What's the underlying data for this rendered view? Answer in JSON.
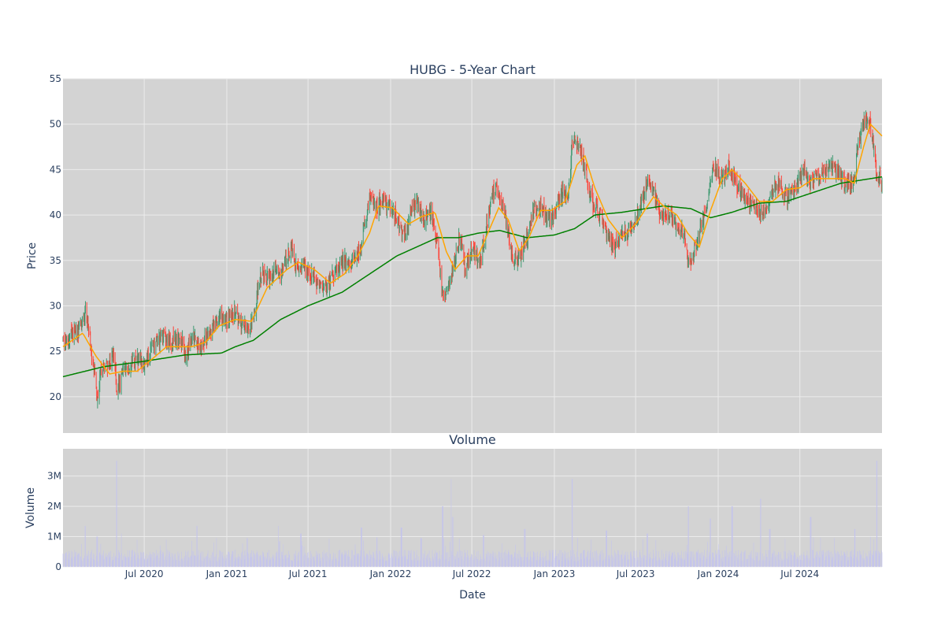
{
  "chart_data": [
    {
      "type": "candlestick",
      "title": "HUBG - 5-Year Chart",
      "ylabel": "Price",
      "ylim": [
        16,
        55
      ],
      "yticks": [
        20,
        25,
        30,
        35,
        40,
        45,
        50,
        55
      ],
      "grid": true,
      "x_range": [
        "2020-01-02",
        "2024-12-31"
      ],
      "colors": {
        "up": "#3d9970",
        "down": "#ff4136",
        "ma_short": "#ffa500",
        "ma_long": "#008000",
        "plot_bg": "#d3d3d3"
      },
      "close_anchors": [
        [
          "2020-01-02",
          25.8
        ],
        [
          "2020-01-20",
          26.8
        ],
        [
          "2020-02-10",
          27.2
        ],
        [
          "2020-02-21",
          29.5
        ],
        [
          "2020-03-03",
          26.0
        ],
        [
          "2020-03-12",
          23.0
        ],
        [
          "2020-03-18",
          19.5
        ],
        [
          "2020-03-24",
          22.0
        ],
        [
          "2020-04-10",
          23.5
        ],
        [
          "2020-04-24",
          24.5
        ],
        [
          "2020-05-01",
          21.0
        ],
        [
          "2020-05-15",
          22.5
        ],
        [
          "2020-06-01",
          23.5
        ],
        [
          "2020-06-15",
          24.0
        ],
        [
          "2020-07-01",
          23.5
        ],
        [
          "2020-07-20",
          25.5
        ],
        [
          "2020-08-10",
          26.5
        ],
        [
          "2020-09-01",
          26.0
        ],
        [
          "2020-09-20",
          26.5
        ],
        [
          "2020-10-01",
          24.5
        ],
        [
          "2020-10-15",
          26.5
        ],
        [
          "2020-11-01",
          25.5
        ],
        [
          "2020-11-15",
          26.5
        ],
        [
          "2020-12-01",
          28.0
        ],
        [
          "2020-12-20",
          28.5
        ],
        [
          "2021-01-05",
          28.5
        ],
        [
          "2021-01-20",
          29.5
        ],
        [
          "2021-02-01",
          28.0
        ],
        [
          "2021-02-15",
          27.5
        ],
        [
          "2021-03-01",
          28.5
        ],
        [
          "2021-03-10",
          31.5
        ],
        [
          "2021-03-18",
          33.5
        ],
        [
          "2021-04-05",
          33.0
        ],
        [
          "2021-04-20",
          34.0
        ],
        [
          "2021-05-01",
          33.0
        ],
        [
          "2021-05-15",
          35.5
        ],
        [
          "2021-05-25",
          36.5
        ],
        [
          "2021-06-05",
          34.0
        ],
        [
          "2021-06-20",
          34.5
        ],
        [
          "2021-07-10",
          33.5
        ],
        [
          "2021-07-25",
          32.5
        ],
        [
          "2021-08-10",
          32.0
        ],
        [
          "2021-09-01",
          34.0
        ],
        [
          "2021-09-20",
          35.0
        ],
        [
          "2021-10-05",
          34.5
        ],
        [
          "2021-10-25",
          36.0
        ],
        [
          "2021-11-05",
          39.0
        ],
        [
          "2021-11-15",
          42.0
        ],
        [
          "2021-12-01",
          41.0
        ],
        [
          "2021-12-15",
          41.5
        ],
        [
          "2022-01-01",
          40.5
        ],
        [
          "2022-01-15",
          39.5
        ],
        [
          "2022-02-01",
          38.0
        ],
        [
          "2022-02-15",
          40.0
        ],
        [
          "2022-03-01",
          41.5
        ],
        [
          "2022-03-15",
          39.5
        ],
        [
          "2022-04-01",
          40.5
        ],
        [
          "2022-04-15",
          37.0
        ],
        [
          "2022-04-27",
          31.0
        ],
        [
          "2022-05-10",
          32.0
        ],
        [
          "2022-05-25",
          35.0
        ],
        [
          "2022-06-05",
          38.0
        ],
        [
          "2022-06-15",
          34.0
        ],
        [
          "2022-07-01",
          36.0
        ],
        [
          "2022-07-20",
          35.0
        ],
        [
          "2022-08-01",
          38.0
        ],
        [
          "2022-08-15",
          42.5
        ],
        [
          "2022-08-25",
          43.0
        ],
        [
          "2022-09-15",
          39.5
        ],
        [
          "2022-09-30",
          35.0
        ],
        [
          "2022-10-15",
          35.5
        ],
        [
          "2022-10-30",
          37.0
        ],
        [
          "2022-11-15",
          40.5
        ],
        [
          "2022-12-01",
          41.0
        ],
        [
          "2022-12-15",
          39.5
        ],
        [
          "2023-01-01",
          40.0
        ],
        [
          "2023-01-15",
          42.5
        ],
        [
          "2023-02-01",
          42.0
        ],
        [
          "2023-02-10",
          48.5
        ],
        [
          "2023-02-25",
          47.5
        ],
        [
          "2023-03-10",
          45.0
        ],
        [
          "2023-03-25",
          41.5
        ],
        [
          "2023-04-15",
          40.0
        ],
        [
          "2023-05-01",
          37.0
        ],
        [
          "2023-05-15",
          36.5
        ],
        [
          "2023-06-01",
          37.5
        ],
        [
          "2023-06-20",
          38.5
        ],
        [
          "2023-07-10",
          40.5
        ],
        [
          "2023-07-25",
          43.5
        ],
        [
          "2023-08-10",
          42.5
        ],
        [
          "2023-08-25",
          40.0
        ],
        [
          "2023-09-15",
          40.0
        ],
        [
          "2023-10-01",
          39.0
        ],
        [
          "2023-10-20",
          37.5
        ],
        [
          "2023-10-27",
          34.5
        ],
        [
          "2023-11-05",
          35.5
        ],
        [
          "2023-11-20",
          38.0
        ],
        [
          "2023-12-05",
          40.5
        ],
        [
          "2023-12-20",
          45.5
        ],
        [
          "2024-01-10",
          44.0
        ],
        [
          "2024-01-25",
          45.5
        ],
        [
          "2024-02-10",
          43.5
        ],
        [
          "2024-03-01",
          42.0
        ],
        [
          "2024-03-20",
          41.0
        ],
        [
          "2024-04-10",
          40.0
        ],
        [
          "2024-04-25",
          42.0
        ],
        [
          "2024-05-10",
          43.5
        ],
        [
          "2024-06-01",
          42.0
        ],
        [
          "2024-06-20",
          43.0
        ],
        [
          "2024-07-10",
          45.0
        ],
        [
          "2024-07-25",
          43.5
        ],
        [
          "2024-08-15",
          44.0
        ],
        [
          "2024-09-05",
          45.5
        ],
        [
          "2024-09-25",
          44.5
        ],
        [
          "2024-10-15",
          43.0
        ],
        [
          "2024-10-30",
          44.0
        ],
        [
          "2024-11-10",
          48.5
        ],
        [
          "2024-11-25",
          51.0
        ],
        [
          "2024-12-10",
          49.0
        ],
        [
          "2024-12-20",
          44.0
        ],
        [
          "2024-12-31",
          44.0
        ]
      ],
      "ma_short_anchors": [
        [
          "2020-01-02",
          25.5
        ],
        [
          "2020-02-15",
          27.0
        ],
        [
          "2020-03-15",
          24.5
        ],
        [
          "2020-04-15",
          22.5
        ],
        [
          "2020-05-15",
          22.8
        ],
        [
          "2020-06-15",
          22.8
        ],
        [
          "2020-07-15",
          24.0
        ],
        [
          "2020-08-20",
          25.5
        ],
        [
          "2020-10-15",
          25.5
        ],
        [
          "2020-11-15",
          26.0
        ],
        [
          "2020-12-15",
          27.8
        ],
        [
          "2021-01-20",
          28.5
        ],
        [
          "2021-02-25",
          28.3
        ],
        [
          "2021-04-01",
          32.0
        ],
        [
          "2021-05-15",
          34.0
        ],
        [
          "2021-06-10",
          34.8
        ],
        [
          "2021-07-15",
          34.0
        ],
        [
          "2021-08-20",
          32.5
        ],
        [
          "2021-09-20",
          33.5
        ],
        [
          "2021-10-20",
          35.5
        ],
        [
          "2021-11-15",
          38.0
        ],
        [
          "2021-12-05",
          41.0
        ],
        [
          "2022-01-05",
          40.8
        ],
        [
          "2022-02-10",
          39.0
        ],
        [
          "2022-03-10",
          39.8
        ],
        [
          "2022-04-10",
          40.3
        ],
        [
          "2022-05-05",
          36.0
        ],
        [
          "2022-05-25",
          34.0
        ],
        [
          "2022-06-20",
          35.5
        ],
        [
          "2022-07-15",
          35.5
        ],
        [
          "2022-08-10",
          38.5
        ],
        [
          "2022-08-30",
          40.8
        ],
        [
          "2022-09-20",
          39.5
        ],
        [
          "2022-10-15",
          36.0
        ],
        [
          "2022-11-05",
          37.5
        ],
        [
          "2022-12-01",
          40.5
        ],
        [
          "2022-12-25",
          40.5
        ],
        [
          "2023-01-25",
          41.5
        ],
        [
          "2023-02-20",
          45.5
        ],
        [
          "2023-03-10",
          46.5
        ],
        [
          "2023-04-01",
          43.0
        ],
        [
          "2023-05-01",
          39.5
        ],
        [
          "2023-06-01",
          37.5
        ],
        [
          "2023-07-01",
          39.0
        ],
        [
          "2023-08-10",
          42.0
        ],
        [
          "2023-09-01",
          41.0
        ],
        [
          "2023-10-01",
          40.0
        ],
        [
          "2023-10-25",
          38.0
        ],
        [
          "2023-11-20",
          36.5
        ],
        [
          "2023-12-15",
          40.5
        ],
        [
          "2024-01-10",
          44.0
        ],
        [
          "2024-02-01",
          45.0
        ],
        [
          "2024-03-01",
          43.5
        ],
        [
          "2024-04-01",
          41.5
        ],
        [
          "2024-05-01",
          41.5
        ],
        [
          "2024-06-01",
          42.8
        ],
        [
          "2024-07-01",
          43.0
        ],
        [
          "2024-08-01",
          44.0
        ],
        [
          "2024-09-01",
          44.0
        ],
        [
          "2024-10-10",
          44.0
        ],
        [
          "2024-10-30",
          43.5
        ],
        [
          "2024-11-20",
          47.5
        ],
        [
          "2024-12-05",
          50.0
        ],
        [
          "2024-12-31",
          48.7
        ]
      ],
      "ma_long_anchors": [
        [
          "2020-01-02",
          22.2
        ],
        [
          "2020-04-01",
          23.3
        ],
        [
          "2020-07-01",
          23.9
        ],
        [
          "2020-10-01",
          24.6
        ],
        [
          "2020-12-20",
          24.8
        ],
        [
          "2021-01-20",
          25.5
        ],
        [
          "2021-03-01",
          26.2
        ],
        [
          "2021-05-01",
          28.5
        ],
        [
          "2021-07-01",
          30.0
        ],
        [
          "2021-09-15",
          31.5
        ],
        [
          "2021-11-15",
          33.5
        ],
        [
          "2022-01-15",
          35.5
        ],
        [
          "2022-03-01",
          36.5
        ],
        [
          "2022-04-15",
          37.5
        ],
        [
          "2022-06-01",
          37.5
        ],
        [
          "2022-07-15",
          38.0
        ],
        [
          "2022-09-01",
          38.3
        ],
        [
          "2022-11-01",
          37.5
        ],
        [
          "2023-01-01",
          37.8
        ],
        [
          "2023-02-15",
          38.5
        ],
        [
          "2023-04-01",
          40.0
        ],
        [
          "2023-06-01",
          40.3
        ],
        [
          "2023-09-01",
          41.0
        ],
        [
          "2023-11-01",
          40.7
        ],
        [
          "2023-12-15",
          39.7
        ],
        [
          "2024-02-01",
          40.3
        ],
        [
          "2024-04-01",
          41.3
        ],
        [
          "2024-06-01",
          41.5
        ],
        [
          "2024-08-01",
          42.5
        ],
        [
          "2024-10-01",
          43.5
        ],
        [
          "2024-12-31",
          44.2
        ]
      ]
    },
    {
      "type": "bar",
      "title": "Volume",
      "xlabel": "Date",
      "ylabel": "Volume",
      "ylim": [
        0,
        3900000
      ],
      "yticks": [
        0,
        1000000,
        2000000,
        3000000
      ],
      "ytick_labels": [
        "0",
        "1M",
        "2M",
        "3M"
      ],
      "xticks": [
        "2020-07-01",
        "2021-01-01",
        "2021-07-01",
        "2022-01-01",
        "2022-07-01",
        "2023-01-01",
        "2023-07-01",
        "2024-01-01",
        "2024-07-01"
      ],
      "xtick_labels": [
        "Jul 2020",
        "Jan 2021",
        "Jul 2021",
        "Jan 2022",
        "Jul 2022",
        "Jan 2023",
        "Jul 2023",
        "Jan 2024",
        "Jul 2024"
      ],
      "bar_color": "#c4c4ec",
      "base_volume": 420000,
      "volume_spikes": [
        [
          "2020-02-21",
          1350000
        ],
        [
          "2020-03-18",
          1000000
        ],
        [
          "2020-05-01",
          3500000
        ],
        [
          "2020-05-10",
          1100000
        ],
        [
          "2020-10-26",
          1350000
        ],
        [
          "2021-02-15",
          950000
        ],
        [
          "2021-04-25",
          1350000
        ],
        [
          "2021-06-15",
          1100000
        ],
        [
          "2021-10-28",
          1300000
        ],
        [
          "2022-01-25",
          1300000
        ],
        [
          "2022-03-10",
          950000
        ],
        [
          "2022-04-27",
          2000000
        ],
        [
          "2022-05-15",
          2900000
        ],
        [
          "2022-05-20",
          1650000
        ],
        [
          "2022-07-27",
          1050000
        ],
        [
          "2022-10-27",
          1250000
        ],
        [
          "2023-02-10",
          2900000
        ],
        [
          "2023-04-27",
          1200000
        ],
        [
          "2023-07-27",
          1100000
        ],
        [
          "2023-10-27",
          2000000
        ],
        [
          "2023-12-15",
          1600000
        ],
        [
          "2024-02-01",
          2000000
        ],
        [
          "2024-04-05",
          2250000
        ],
        [
          "2024-04-25",
          1250000
        ],
        [
          "2024-07-25",
          1650000
        ],
        [
          "2024-09-15",
          950000
        ],
        [
          "2024-11-01",
          1250000
        ],
        [
          "2024-12-20",
          3500000
        ]
      ]
    }
  ]
}
